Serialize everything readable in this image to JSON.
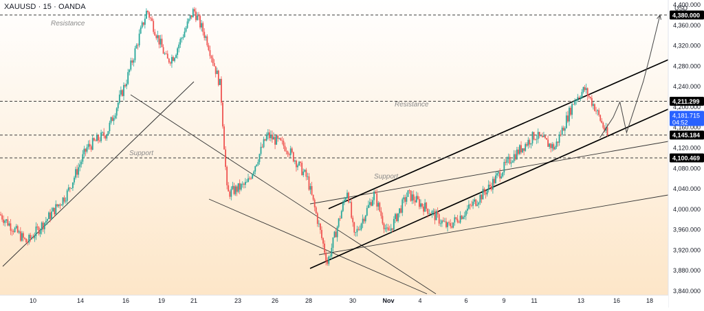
{
  "header": {
    "symbol": "XAUUSD",
    "separator": " · ",
    "interval": "15",
    "exchange": "OANDA"
  },
  "price_axis": {
    "currency": "USD",
    "ticks": [
      "4,400.000",
      "4,360.000",
      "4,320.000",
      "4,280.000",
      "4,240.000",
      "4,200.000",
      "4,160.000",
      "4,120.000",
      "4,080.000",
      "4,040.000",
      "4,000.000",
      "3,960.000",
      "3,920.000",
      "3,880.000",
      "3,840.000"
    ],
    "tick_values": [
      4400,
      4360,
      4320,
      4280,
      4240,
      4200,
      4160,
      4120,
      4080,
      4040,
      4000,
      3960,
      3920,
      3880,
      3840
    ]
  },
  "time_axis": {
    "labels": [
      "10",
      "14",
      "16",
      "19",
      "21",
      "23",
      "26",
      "28",
      "30",
      "Nov",
      "4",
      "6",
      "9",
      "11",
      "13",
      "16",
      "18"
    ],
    "bold": [
      "Nov"
    ]
  },
  "colors": {
    "bull": "#26a69a",
    "bear": "#ef5350",
    "line": "#000000",
    "dashed": "#3a3a3a",
    "annotation": "#8a8a8a",
    "current_price_bg": "#2962ff",
    "level_tag_bg": "#000000",
    "background_top": "#ffffff",
    "background_bottom": "#fde6c8"
  },
  "chart_data": {
    "type": "candlestick",
    "title": "XAUUSD · 15 · OANDA",
    "ylabel": "USD",
    "ylim": [
      3840,
      4400
    ],
    "levels": [
      {
        "value": 4380.0,
        "label": "4,380.000"
      },
      {
        "value": 4211.299,
        "label": "4,211.299"
      },
      {
        "value": 4145.184,
        "label": "4,145.184"
      },
      {
        "value": 4100.469,
        "label": "4,100.469"
      }
    ],
    "current_price": {
      "value": 4181.715,
      "label": "4,181.715",
      "countdown": "04:52"
    },
    "annotations": [
      {
        "text": "Resistance",
        "near_value": 4400
      },
      {
        "text": "Support",
        "near_value": 4130
      },
      {
        "text": "Resistance",
        "near_value": 4225
      },
      {
        "text": "Support",
        "near_value": 4085
      }
    ],
    "price_path": [
      [
        0,
        3990
      ],
      [
        0.04,
        3935
      ],
      [
        0.07,
        3980
      ],
      [
        0.1,
        4030
      ],
      [
        0.13,
        4120
      ],
      [
        0.16,
        4150
      ],
      [
        0.19,
        4255
      ],
      [
        0.22,
        4390
      ],
      [
        0.25,
        4290
      ],
      [
        0.26,
        4300
      ],
      [
        0.29,
        4390
      ],
      [
        0.31,
        4330
      ],
      [
        0.33,
        4240
      ],
      [
        0.34,
        4030
      ],
      [
        0.37,
        4050
      ],
      [
        0.4,
        4145
      ],
      [
        0.43,
        4120
      ],
      [
        0.46,
        4060
      ],
      [
        0.475,
        3980
      ],
      [
        0.49,
        3895
      ],
      [
        0.52,
        4040
      ],
      [
        0.53,
        3945
      ],
      [
        0.56,
        4030
      ],
      [
        0.58,
        3950
      ],
      [
        0.61,
        4030
      ],
      [
        0.64,
        4000
      ],
      [
        0.67,
        3965
      ],
      [
        0.7,
        4000
      ],
      [
        0.73,
        4040
      ],
      [
        0.765,
        4100
      ],
      [
        0.8,
        4145
      ],
      [
        0.83,
        4120
      ],
      [
        0.86,
        4215
      ],
      [
        0.875,
        4235
      ],
      [
        0.89,
        4200
      ],
      [
        0.91,
        4140
      ]
    ],
    "projection": [
      [
        0.91,
        4140
      ],
      [
        0.93,
        4180
      ],
      [
        0.94,
        4210
      ],
      [
        0.95,
        4150
      ],
      [
        0.975,
        4250
      ],
      [
        0.985,
        4300
      ],
      [
        1.0,
        4380
      ]
    ]
  }
}
